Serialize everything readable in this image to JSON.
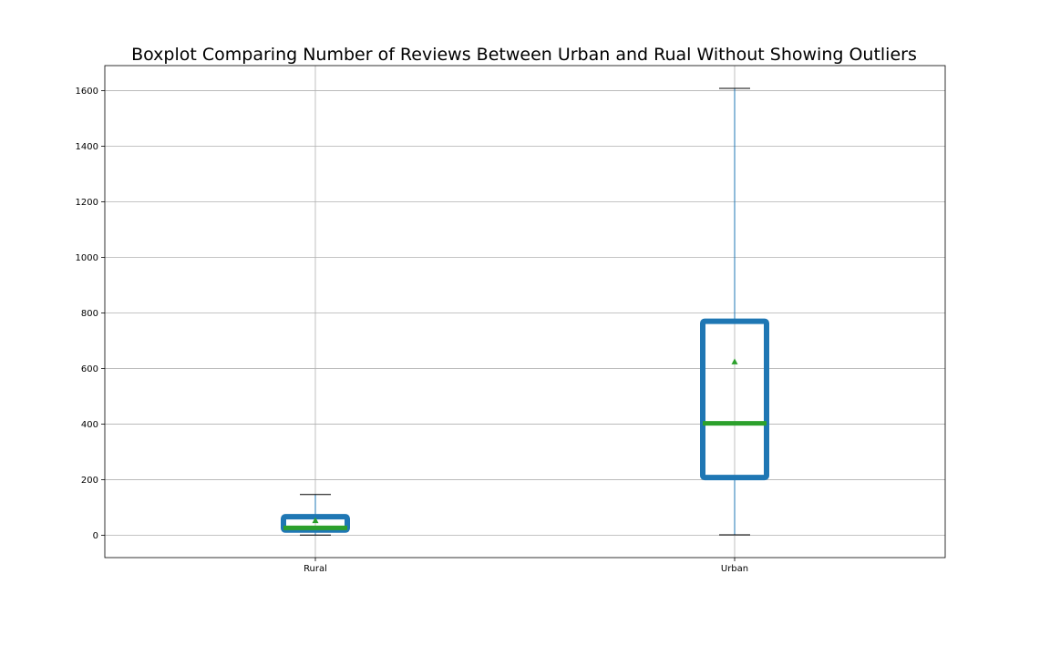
{
  "chart_data": {
    "type": "boxplot",
    "title": "Boxplot Comparing Number of Reviews Between Urban and Rual Without Showing Outliers",
    "xlabel": "",
    "ylabel": "",
    "ylim": [
      -80,
      1690
    ],
    "yticks": [
      0,
      200,
      400,
      600,
      800,
      1000,
      1200,
      1400,
      1600
    ],
    "grid": true,
    "show_outliers": false,
    "categories": [
      "Rural",
      "Urban"
    ],
    "boxes": [
      {
        "label": "Rural",
        "whisker_low": 1,
        "q1": 19,
        "median": 27,
        "q3": 67,
        "whisker_high": 147,
        "mean": 54
      },
      {
        "label": "Urban",
        "whisker_low": 2,
        "q1": 208,
        "median": 403,
        "q3": 770,
        "whisker_high": 1608,
        "mean": 625
      }
    ],
    "colors": {
      "box": "#1f77b4",
      "median": "#2ca02c",
      "mean_marker": "#2ca02c",
      "whisker": "#1f77b4",
      "cap": "#000000",
      "grid": "#b0b0b0"
    }
  }
}
